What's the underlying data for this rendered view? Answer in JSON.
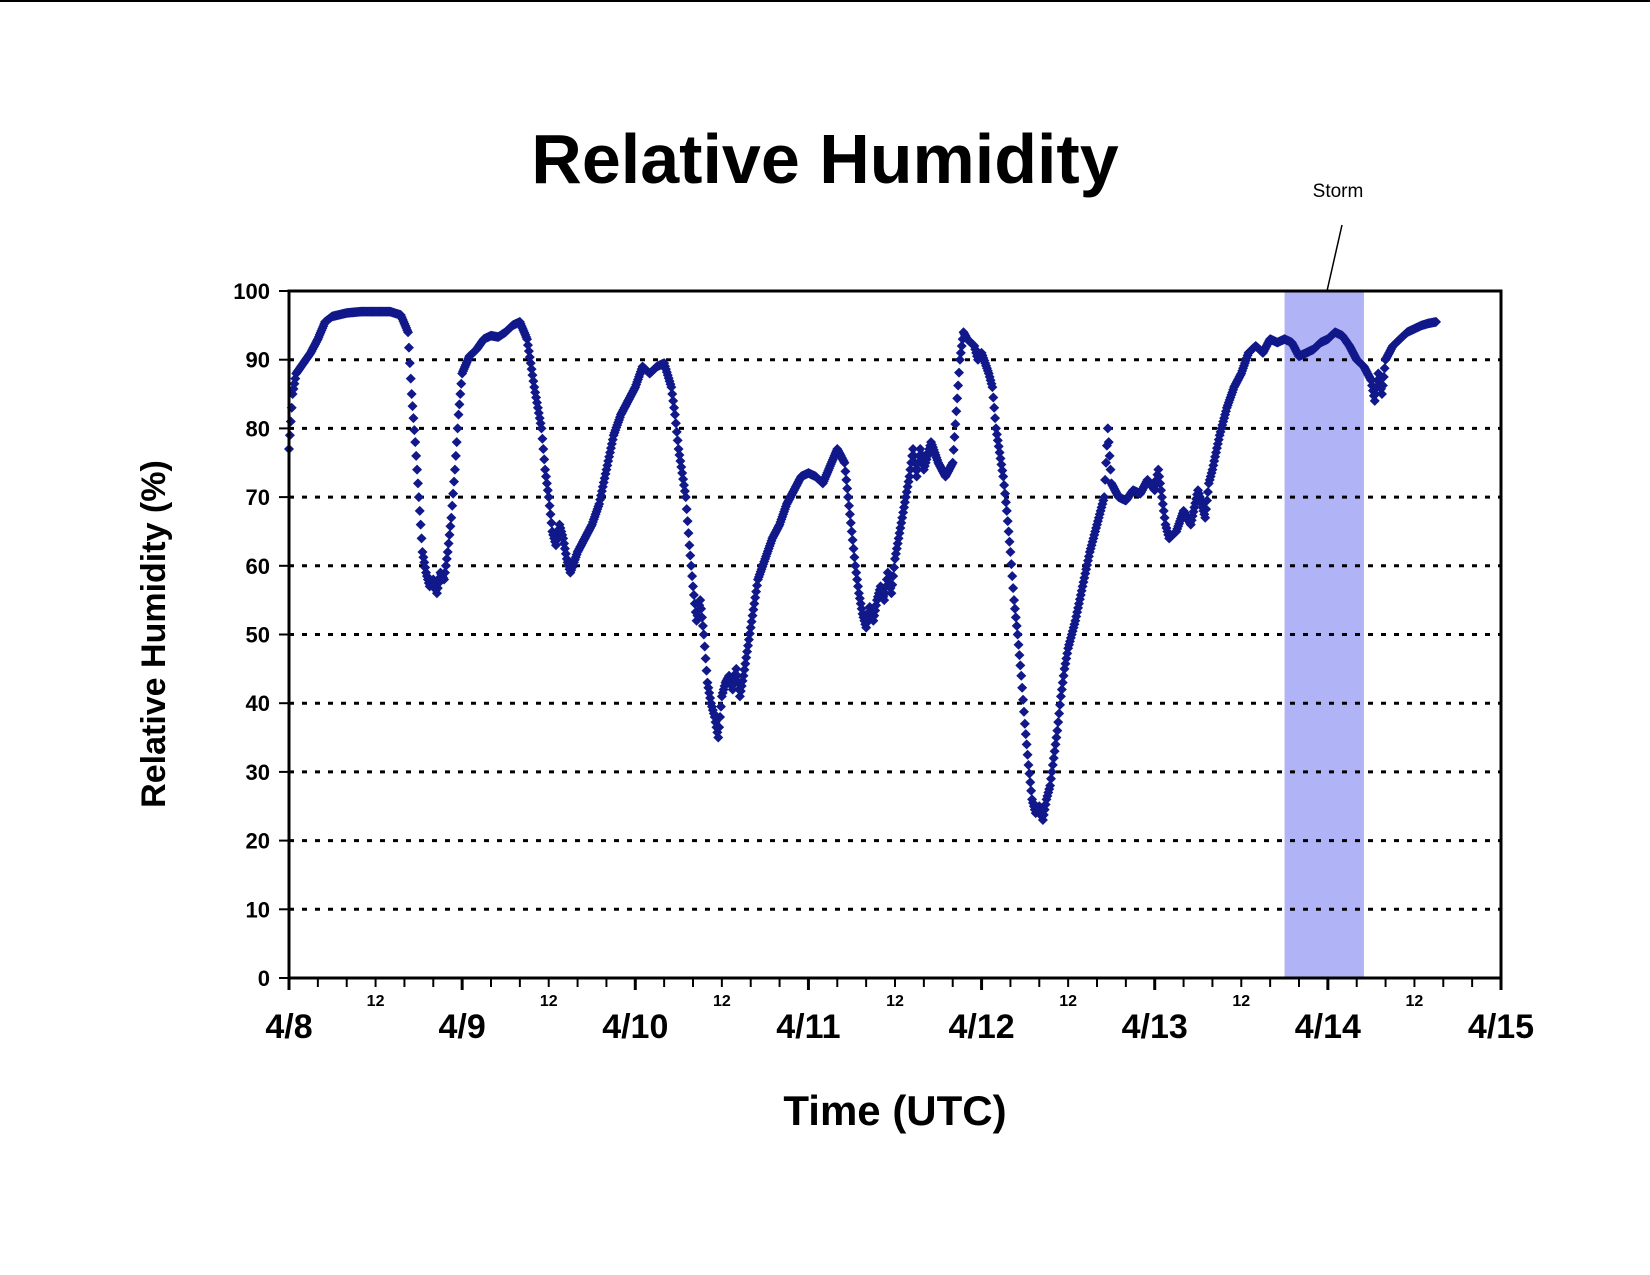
{
  "chart_data": {
    "type": "scatter",
    "title": "Relative Humidity",
    "xlabel": "Time (UTC)",
    "ylabel": "Relative Humidity (%)",
    "ylim": [
      0,
      100
    ],
    "y_ticks": [
      "0",
      "10",
      "20",
      "30",
      "40",
      "50",
      "60",
      "70",
      "80",
      "90",
      "100"
    ],
    "x_unit": "hours since 4/8 00:00 UTC",
    "xlim": [
      0,
      168
    ],
    "date_ticks": [
      {
        "x": 0,
        "label": "4/8"
      },
      {
        "x": 24,
        "label": "4/9"
      },
      {
        "x": 48,
        "label": "4/10"
      },
      {
        "x": 72,
        "label": "4/11"
      },
      {
        "x": 96,
        "label": "4/12"
      },
      {
        "x": 120,
        "label": "4/13"
      },
      {
        "x": 144,
        "label": "4/14"
      },
      {
        "x": 168,
        "label": "4/15"
      }
    ],
    "noon_ticks": [
      {
        "x": 12,
        "label": "12"
      },
      {
        "x": 36,
        "label": "12"
      },
      {
        "x": 60,
        "label": "12"
      },
      {
        "x": 84,
        "label": "12"
      },
      {
        "x": 108,
        "label": "12"
      },
      {
        "x": 132,
        "label": "12"
      },
      {
        "x": 156,
        "label": "12"
      }
    ],
    "grid": "horizontal dotted",
    "highlight": {
      "label": "Storm",
      "x_start": 138,
      "x_end": 149,
      "color": "#b0b3f5"
    },
    "series": [
      {
        "color": "#10188a",
        "points": [
          [
            0,
            77
          ],
          [
            0.5,
            85
          ],
          [
            1,
            88
          ],
          [
            2,
            89.5
          ],
          [
            3,
            91
          ],
          [
            4,
            93
          ],
          [
            5,
            95.5
          ],
          [
            6,
            96.3
          ],
          [
            8,
            96.8
          ],
          [
            10,
            97
          ],
          [
            12,
            97
          ],
          [
            14,
            97
          ],
          [
            15.5,
            96.5
          ],
          [
            16.5,
            94
          ],
          [
            17,
            85
          ],
          [
            17.5,
            78
          ],
          [
            18,
            70
          ],
          [
            18.5,
            62
          ],
          [
            19,
            59
          ],
          [
            19.5,
            57
          ],
          [
            20,
            58
          ],
          [
            20.5,
            56
          ],
          [
            21,
            59
          ],
          [
            21.5,
            58
          ],
          [
            22,
            62
          ],
          [
            22.5,
            67
          ],
          [
            23,
            74
          ],
          [
            23.5,
            82
          ],
          [
            24,
            88
          ],
          [
            25,
            90.5
          ],
          [
            26,
            91.5
          ],
          [
            27,
            93
          ],
          [
            28,
            93.5
          ],
          [
            29,
            93.3
          ],
          [
            30,
            94
          ],
          [
            31,
            95
          ],
          [
            32,
            95.5
          ],
          [
            33,
            93
          ],
          [
            34,
            86
          ],
          [
            35,
            80
          ],
          [
            35.5,
            74
          ],
          [
            36,
            70
          ],
          [
            36.5,
            65
          ],
          [
            37,
            63
          ],
          [
            37.5,
            66
          ],
          [
            38,
            64
          ],
          [
            38.5,
            61
          ],
          [
            39,
            59
          ],
          [
            40,
            62
          ],
          [
            41,
            64
          ],
          [
            42,
            66
          ],
          [
            43,
            69
          ],
          [
            44,
            74
          ],
          [
            45,
            79
          ],
          [
            46,
            82
          ],
          [
            47,
            84
          ],
          [
            48,
            86
          ],
          [
            49,
            89
          ],
          [
            50,
            88
          ],
          [
            51,
            89
          ],
          [
            52,
            89.5
          ],
          [
            53,
            86
          ],
          [
            53.5,
            82
          ],
          [
            54,
            77
          ],
          [
            55,
            70
          ],
          [
            55.5,
            63
          ],
          [
            56,
            57
          ],
          [
            56.5,
            52
          ],
          [
            57,
            55
          ],
          [
            57.5,
            50
          ],
          [
            58,
            43
          ],
          [
            58.5,
            40
          ],
          [
            59,
            38
          ],
          [
            59.5,
            35
          ],
          [
            60,
            41
          ],
          [
            60.5,
            43
          ],
          [
            61,
            44
          ],
          [
            61.5,
            42
          ],
          [
            62,
            45
          ],
          [
            62.5,
            41
          ],
          [
            63,
            44
          ],
          [
            64,
            51
          ],
          [
            65,
            58
          ],
          [
            66,
            61
          ],
          [
            67,
            64
          ],
          [
            68,
            66
          ],
          [
            69,
            69
          ],
          [
            70,
            71
          ],
          [
            71,
            73
          ],
          [
            72,
            73.5
          ],
          [
            73,
            73
          ],
          [
            74,
            72
          ],
          [
            75,
            74.5
          ],
          [
            76,
            77
          ],
          [
            77,
            75
          ],
          [
            77.5,
            70
          ],
          [
            78,
            65
          ],
          [
            78.5,
            60
          ],
          [
            79,
            56
          ],
          [
            79.5,
            53
          ],
          [
            80,
            51
          ],
          [
            80.5,
            54
          ],
          [
            81,
            52
          ],
          [
            81.5,
            55
          ],
          [
            82,
            57
          ],
          [
            82.5,
            55
          ],
          [
            83,
            59
          ],
          [
            83.5,
            56
          ],
          [
            84,
            61
          ],
          [
            85,
            67
          ],
          [
            86,
            73
          ],
          [
            86.5,
            77
          ],
          [
            87,
            73
          ],
          [
            87.5,
            77
          ],
          [
            88,
            74
          ],
          [
            89,
            78
          ],
          [
            90,
            75
          ],
          [
            91,
            73
          ],
          [
            92,
            75
          ],
          [
            93,
            90
          ],
          [
            93.5,
            94
          ],
          [
            94,
            93
          ],
          [
            95,
            92
          ],
          [
            95.5,
            90
          ],
          [
            96,
            91
          ],
          [
            97,
            88
          ],
          [
            97.5,
            86
          ],
          [
            98,
            80
          ],
          [
            99,
            73
          ],
          [
            99.5,
            68
          ],
          [
            100,
            62
          ],
          [
            100.5,
            55
          ],
          [
            101,
            50
          ],
          [
            101.5,
            44
          ],
          [
            102,
            37
          ],
          [
            102.5,
            31
          ],
          [
            103,
            26
          ],
          [
            103.5,
            24
          ],
          [
            104,
            25
          ],
          [
            104.5,
            23
          ],
          [
            105,
            26
          ],
          [
            105.5,
            28
          ],
          [
            106,
            32
          ],
          [
            106.5,
            36
          ],
          [
            107,
            41
          ],
          [
            107.5,
            45
          ],
          [
            108,
            48
          ],
          [
            109,
            52
          ],
          [
            110,
            57
          ],
          [
            111,
            62
          ],
          [
            112,
            66
          ],
          [
            113,
            70
          ],
          [
            113.5,
            80
          ],
          [
            114,
            72
          ],
          [
            115,
            70
          ],
          [
            116,
            69.5
          ],
          [
            117,
            71
          ],
          [
            118,
            70.5
          ],
          [
            119,
            72.5
          ],
          [
            120,
            71
          ],
          [
            120.5,
            74
          ],
          [
            121,
            70
          ],
          [
            121.5,
            66
          ],
          [
            122,
            64
          ],
          [
            123,
            65
          ],
          [
            124,
            68
          ],
          [
            125,
            66
          ],
          [
            126,
            71
          ],
          [
            127,
            67
          ],
          [
            127.5,
            72
          ],
          [
            128,
            74
          ],
          [
            129,
            79
          ],
          [
            130,
            83
          ],
          [
            131,
            86
          ],
          [
            132,
            88
          ],
          [
            133,
            91
          ],
          [
            134,
            92
          ],
          [
            135,
            91
          ],
          [
            136,
            93
          ],
          [
            137,
            92.5
          ],
          [
            138,
            93
          ],
          [
            139,
            92.5
          ],
          [
            140,
            90.5
          ],
          [
            141,
            91
          ],
          [
            142,
            91.5
          ],
          [
            143,
            92.5
          ],
          [
            144,
            93
          ],
          [
            145,
            94
          ],
          [
            146,
            93.5
          ],
          [
            147,
            92
          ],
          [
            148,
            90
          ],
          [
            149,
            89
          ],
          [
            150,
            87
          ],
          [
            150.5,
            84
          ],
          [
            151,
            88
          ],
          [
            151.5,
            85
          ],
          [
            152,
            90
          ],
          [
            153,
            92
          ],
          [
            154,
            93
          ],
          [
            155,
            94
          ],
          [
            156,
            94.5
          ],
          [
            157,
            95
          ],
          [
            158,
            95.3
          ],
          [
            159,
            95.5
          ]
        ]
      }
    ]
  }
}
